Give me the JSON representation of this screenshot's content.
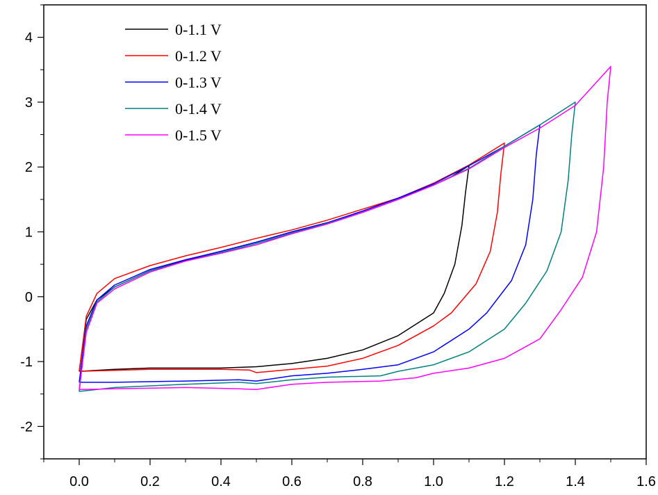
{
  "chart_data": {
    "type": "line",
    "title": "",
    "xlabel": "",
    "ylabel": "",
    "xlim": [
      -0.1,
      1.6
    ],
    "ylim": [
      -2.5,
      4.5
    ],
    "xticks": [
      0.0,
      0.2,
      0.4,
      0.6,
      0.8,
      1.0,
      1.2,
      1.4,
      1.6
    ],
    "xtick_labels": [
      "0.0",
      "0.2",
      "0.4",
      "0.6",
      "0.8",
      "1.0",
      "1.2",
      "1.4",
      "1.6"
    ],
    "yticks": [
      -2,
      -1,
      0,
      1,
      2,
      3,
      4
    ],
    "ytick_labels": [
      "-2",
      "-1",
      "0",
      "1",
      "2",
      "3",
      "4"
    ],
    "grid": false,
    "legend_position": "top-left",
    "series": [
      {
        "name": "0-1.1 V",
        "color": "#000000",
        "points": [
          [
            0.0,
            -1.15
          ],
          [
            0.02,
            -0.35
          ],
          [
            0.05,
            -0.05
          ],
          [
            0.1,
            0.15
          ],
          [
            0.2,
            0.4
          ],
          [
            0.3,
            0.56
          ],
          [
            0.4,
            0.7
          ],
          [
            0.5,
            0.84
          ],
          [
            0.6,
            1.0
          ],
          [
            0.7,
            1.14
          ],
          [
            0.8,
            1.32
          ],
          [
            0.9,
            1.52
          ],
          [
            1.0,
            1.72
          ],
          [
            1.05,
            1.85
          ],
          [
            1.1,
            2.02
          ],
          [
            1.09,
            1.6
          ],
          [
            1.08,
            1.1
          ],
          [
            1.06,
            0.5
          ],
          [
            1.03,
            0.05
          ],
          [
            1.0,
            -0.25
          ],
          [
            0.9,
            -0.6
          ],
          [
            0.8,
            -0.82
          ],
          [
            0.7,
            -0.95
          ],
          [
            0.6,
            -1.03
          ],
          [
            0.5,
            -1.08
          ],
          [
            0.4,
            -1.1
          ],
          [
            0.2,
            -1.1
          ],
          [
            0.1,
            -1.12
          ],
          [
            0.0,
            -1.15
          ]
        ]
      },
      {
        "name": "0-1.2 V",
        "color": "#ff0000",
        "points": [
          [
            0.0,
            -1.15
          ],
          [
            0.02,
            -0.3
          ],
          [
            0.05,
            0.05
          ],
          [
            0.1,
            0.28
          ],
          [
            0.2,
            0.48
          ],
          [
            0.3,
            0.63
          ],
          [
            0.4,
            0.76
          ],
          [
            0.5,
            0.9
          ],
          [
            0.6,
            1.03
          ],
          [
            0.7,
            1.18
          ],
          [
            0.8,
            1.35
          ],
          [
            0.9,
            1.52
          ],
          [
            1.0,
            1.75
          ],
          [
            1.1,
            2.03
          ],
          [
            1.2,
            2.37
          ],
          [
            1.19,
            1.9
          ],
          [
            1.18,
            1.3
          ],
          [
            1.16,
            0.7
          ],
          [
            1.12,
            0.2
          ],
          [
            1.05,
            -0.25
          ],
          [
            1.0,
            -0.45
          ],
          [
            0.9,
            -0.75
          ],
          [
            0.8,
            -0.95
          ],
          [
            0.7,
            -1.07
          ],
          [
            0.6,
            -1.12
          ],
          [
            0.5,
            -1.17
          ],
          [
            0.48,
            -1.13
          ],
          [
            0.4,
            -1.12
          ],
          [
            0.2,
            -1.12
          ],
          [
            0.0,
            -1.15
          ]
        ]
      },
      {
        "name": "0-1.3 V",
        "color": "#0000ff",
        "points": [
          [
            0.0,
            -1.32
          ],
          [
            0.02,
            -0.45
          ],
          [
            0.05,
            -0.05
          ],
          [
            0.1,
            0.18
          ],
          [
            0.2,
            0.42
          ],
          [
            0.3,
            0.57
          ],
          [
            0.4,
            0.7
          ],
          [
            0.5,
            0.84
          ],
          [
            0.6,
            1.0
          ],
          [
            0.7,
            1.14
          ],
          [
            0.8,
            1.32
          ],
          [
            0.9,
            1.52
          ],
          [
            1.0,
            1.74
          ],
          [
            1.1,
            2.02
          ],
          [
            1.2,
            2.32
          ],
          [
            1.3,
            2.65
          ],
          [
            1.29,
            2.2
          ],
          [
            1.28,
            1.5
          ],
          [
            1.26,
            0.8
          ],
          [
            1.22,
            0.25
          ],
          [
            1.15,
            -0.25
          ],
          [
            1.1,
            -0.5
          ],
          [
            1.0,
            -0.85
          ],
          [
            0.9,
            -1.05
          ],
          [
            0.8,
            -1.12
          ],
          [
            0.7,
            -1.18
          ],
          [
            0.6,
            -1.22
          ],
          [
            0.5,
            -1.3
          ],
          [
            0.45,
            -1.28
          ],
          [
            0.3,
            -1.3
          ],
          [
            0.1,
            -1.32
          ],
          [
            0.0,
            -1.32
          ]
        ]
      },
      {
        "name": "0-1.4 V",
        "color": "#008080",
        "points": [
          [
            0.0,
            -1.46
          ],
          [
            0.02,
            -0.5
          ],
          [
            0.05,
            -0.08
          ],
          [
            0.1,
            0.15
          ],
          [
            0.2,
            0.4
          ],
          [
            0.3,
            0.55
          ],
          [
            0.4,
            0.68
          ],
          [
            0.5,
            0.82
          ],
          [
            0.6,
            0.98
          ],
          [
            0.7,
            1.13
          ],
          [
            0.8,
            1.3
          ],
          [
            0.9,
            1.5
          ],
          [
            1.0,
            1.72
          ],
          [
            1.1,
            1.98
          ],
          [
            1.2,
            2.32
          ],
          [
            1.3,
            2.65
          ],
          [
            1.4,
            3.0
          ],
          [
            1.39,
            2.5
          ],
          [
            1.38,
            1.8
          ],
          [
            1.36,
            1.0
          ],
          [
            1.32,
            0.4
          ],
          [
            1.26,
            -0.1
          ],
          [
            1.2,
            -0.5
          ],
          [
            1.1,
            -0.85
          ],
          [
            1.0,
            -1.05
          ],
          [
            0.9,
            -1.15
          ],
          [
            0.85,
            -1.22
          ],
          [
            0.7,
            -1.24
          ],
          [
            0.6,
            -1.28
          ],
          [
            0.5,
            -1.34
          ],
          [
            0.45,
            -1.32
          ],
          [
            0.3,
            -1.35
          ],
          [
            0.1,
            -1.4
          ],
          [
            0.0,
            -1.46
          ]
        ]
      },
      {
        "name": "0-1.5 V",
        "color": "#ff00ff",
        "points": [
          [
            0.0,
            -1.43
          ],
          [
            0.02,
            -0.55
          ],
          [
            0.05,
            -0.1
          ],
          [
            0.1,
            0.12
          ],
          [
            0.2,
            0.38
          ],
          [
            0.3,
            0.55
          ],
          [
            0.4,
            0.67
          ],
          [
            0.5,
            0.8
          ],
          [
            0.6,
            0.97
          ],
          [
            0.7,
            1.12
          ],
          [
            0.8,
            1.3
          ],
          [
            0.9,
            1.5
          ],
          [
            1.0,
            1.72
          ],
          [
            1.1,
            1.97
          ],
          [
            1.2,
            2.3
          ],
          [
            1.3,
            2.6
          ],
          [
            1.4,
            2.95
          ],
          [
            1.5,
            3.55
          ],
          [
            1.49,
            3.0
          ],
          [
            1.48,
            2.0
          ],
          [
            1.46,
            1.0
          ],
          [
            1.42,
            0.3
          ],
          [
            1.36,
            -0.2
          ],
          [
            1.3,
            -0.65
          ],
          [
            1.2,
            -0.95
          ],
          [
            1.1,
            -1.1
          ],
          [
            1.0,
            -1.18
          ],
          [
            0.95,
            -1.25
          ],
          [
            0.85,
            -1.3
          ],
          [
            0.7,
            -1.32
          ],
          [
            0.6,
            -1.35
          ],
          [
            0.5,
            -1.43
          ],
          [
            0.45,
            -1.42
          ],
          [
            0.3,
            -1.4
          ],
          [
            0.1,
            -1.42
          ],
          [
            0.0,
            -1.43
          ]
        ]
      }
    ]
  }
}
